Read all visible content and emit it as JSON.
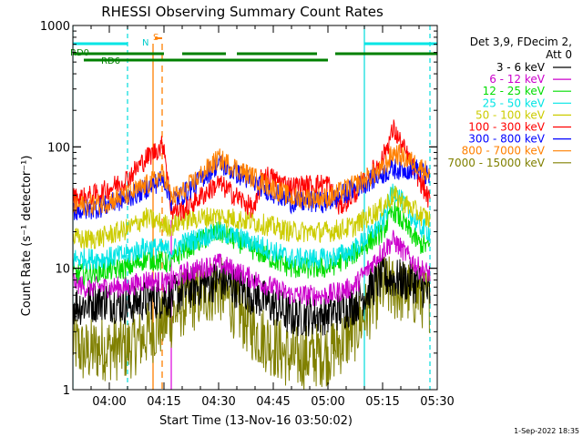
{
  "chart_data": {
    "type": "line",
    "title": "RHESSI Observing Summary Count Rates",
    "xlabel": "Start Time (13-Nov-16 03:50:02)",
    "ylabel": "Count Rate (s⁻¹ detector⁻¹)",
    "x_scale": "time (minutes after 03:50:02)",
    "xlim": [
      0,
      100
    ],
    "y_scale": "log",
    "ylim": [
      1,
      1000
    ],
    "x_ticks": [
      {
        "t": 10,
        "label": "04:00"
      },
      {
        "t": 25,
        "label": "04:15"
      },
      {
        "t": 40,
        "label": "04:30"
      },
      {
        "t": 55,
        "label": "04:45"
      },
      {
        "t": 70,
        "label": "05:00"
      },
      {
        "t": 85,
        "label": "05:15"
      },
      {
        "t": 100,
        "label": "05:30"
      }
    ],
    "y_ticks": [
      {
        "v": 1,
        "label": "1"
      },
      {
        "v": 10,
        "label": "10"
      },
      {
        "v": 100,
        "label": "100"
      },
      {
        "v": 1000,
        "label": "1000"
      }
    ],
    "legend_title": [
      "Det 3,9, FDecim 2,",
      "Att 0"
    ],
    "legend_position": "right",
    "series": [
      {
        "name": "3 - 6 keV",
        "color": "#000000",
        "values": [
          [
            0,
            5
          ],
          [
            3,
            5
          ],
          [
            8,
            5.5
          ],
          [
            15,
            5
          ],
          [
            20,
            5.5
          ],
          [
            27,
            5.8
          ],
          [
            30,
            6.5
          ],
          [
            40,
            8
          ],
          [
            50,
            6
          ],
          [
            60,
            4
          ],
          [
            70,
            4.2
          ],
          [
            77,
            5
          ],
          [
            85,
            8.5
          ],
          [
            95,
            7.5
          ],
          [
            98,
            6
          ]
        ]
      },
      {
        "name": "6 - 12 keV",
        "color": "#cc00cc",
        "values": [
          [
            0,
            8
          ],
          [
            3,
            7
          ],
          [
            8,
            7
          ],
          [
            15,
            7
          ],
          [
            20,
            8
          ],
          [
            27,
            7.5
          ],
          [
            30,
            9
          ],
          [
            40,
            11
          ],
          [
            50,
            8
          ],
          [
            60,
            6
          ],
          [
            70,
            6
          ],
          [
            77,
            7
          ],
          [
            85,
            14
          ],
          [
            88,
            17
          ],
          [
            95,
            10
          ],
          [
            98,
            9
          ]
        ]
      },
      {
        "name": "12 - 25 keV",
        "color": "#00dd00",
        "values": [
          [
            0,
            9
          ],
          [
            3,
            9
          ],
          [
            8,
            9.5
          ],
          [
            15,
            10
          ],
          [
            20,
            12
          ],
          [
            27,
            11
          ],
          [
            30,
            14
          ],
          [
            40,
            20
          ],
          [
            50,
            14
          ],
          [
            60,
            10
          ],
          [
            70,
            10
          ],
          [
            77,
            13
          ],
          [
            85,
            20
          ],
          [
            88,
            30
          ],
          [
            95,
            16
          ],
          [
            98,
            15
          ]
        ]
      },
      {
        "name": "25 - 50 keV",
        "color": "#00e5e5",
        "values": [
          [
            0,
            12
          ],
          [
            3,
            12
          ],
          [
            8,
            12
          ],
          [
            15,
            13
          ],
          [
            20,
            15
          ],
          [
            27,
            14
          ],
          [
            30,
            16
          ],
          [
            40,
            20
          ],
          [
            50,
            16
          ],
          [
            60,
            12
          ],
          [
            70,
            12
          ],
          [
            77,
            14
          ],
          [
            85,
            24
          ],
          [
            88,
            45
          ],
          [
            95,
            22
          ],
          [
            98,
            20
          ]
        ]
      },
      {
        "name": "50 - 100 keV",
        "color": "#cccc00",
        "values": [
          [
            0,
            18
          ],
          [
            3,
            17
          ],
          [
            8,
            18
          ],
          [
            15,
            21
          ],
          [
            20,
            26
          ],
          [
            27,
            22
          ],
          [
            30,
            25
          ],
          [
            40,
            27
          ],
          [
            50,
            24
          ],
          [
            60,
            20
          ],
          [
            70,
            20
          ],
          [
            77,
            22
          ],
          [
            85,
            32
          ],
          [
            88,
            40
          ],
          [
            95,
            28
          ],
          [
            98,
            25
          ]
        ]
      },
      {
        "name": "100 - 300 keV",
        "color": "#ff0000",
        "values": [
          [
            0,
            38
          ],
          [
            3,
            38
          ],
          [
            8,
            42
          ],
          [
            15,
            55
          ],
          [
            20,
            80
          ],
          [
            25,
            105
          ],
          [
            27,
            30
          ],
          [
            30,
            30
          ],
          [
            40,
            50
          ],
          [
            50,
            30
          ],
          [
            52,
            60
          ],
          [
            60,
            47
          ],
          [
            70,
            50
          ],
          [
            73,
            32
          ],
          [
            77,
            40
          ],
          [
            85,
            80
          ],
          [
            88,
            140
          ],
          [
            95,
            55
          ],
          [
            98,
            35
          ]
        ]
      },
      {
        "name": "300 - 800 keV",
        "color": "#0000ff",
        "values": [
          [
            0,
            30
          ],
          [
            3,
            30
          ],
          [
            8,
            32
          ],
          [
            15,
            38
          ],
          [
            20,
            45
          ],
          [
            25,
            55
          ],
          [
            27,
            36
          ],
          [
            30,
            40
          ],
          [
            40,
            73
          ],
          [
            50,
            50
          ],
          [
            60,
            35
          ],
          [
            70,
            35
          ],
          [
            77,
            45
          ],
          [
            85,
            60
          ],
          [
            88,
            66
          ],
          [
            95,
            65
          ],
          [
            98,
            55
          ]
        ]
      },
      {
        "name": "800 - 7000 keV",
        "color": "#ff8000",
        "values": [
          [
            0,
            32
          ],
          [
            3,
            33
          ],
          [
            8,
            34
          ],
          [
            15,
            40
          ],
          [
            20,
            48
          ],
          [
            25,
            60
          ],
          [
            27,
            38
          ],
          [
            30,
            42
          ],
          [
            40,
            80
          ],
          [
            50,
            55
          ],
          [
            60,
            38
          ],
          [
            70,
            38
          ],
          [
            77,
            48
          ],
          [
            85,
            65
          ],
          [
            88,
            90
          ],
          [
            95,
            70
          ],
          [
            98,
            60
          ]
        ]
      },
      {
        "name": "7000 - 15000 keV",
        "color": "#808000",
        "values": [
          [
            0,
            2.5
          ],
          [
            3,
            2
          ],
          [
            8,
            2.2
          ],
          [
            15,
            2.2
          ],
          [
            20,
            2.8
          ],
          [
            27,
            4
          ],
          [
            30,
            5
          ],
          [
            40,
            7
          ],
          [
            50,
            3
          ],
          [
            60,
            1.8
          ],
          [
            70,
            2
          ],
          [
            77,
            3
          ],
          [
            85,
            7
          ],
          [
            95,
            6
          ],
          [
            98,
            5.5
          ]
        ]
      }
    ],
    "annotations": {
      "labels": [
        {
          "text": "RD0",
          "color": "#008000"
        },
        {
          "text": "RD6",
          "color": "#008000"
        },
        {
          "text": "N",
          "color": "#00cccc"
        },
        {
          "text": "S",
          "color": "#ff8000"
        }
      ],
      "green_bars": [
        [
          0,
          25
        ],
        [
          30,
          42
        ],
        [
          45,
          67
        ],
        [
          72,
          100
        ],
        [
          3,
          70
        ]
      ],
      "cyan_bars": [
        [
          0,
          15
        ],
        [
          80,
          100
        ]
      ],
      "cyan_lines": [
        0,
        15,
        80,
        98
      ],
      "orange_lines": [
        22,
        24.5
      ],
      "magenta_lines": [
        27
      ]
    },
    "footer": "1-Sep-2022 18:35"
  }
}
